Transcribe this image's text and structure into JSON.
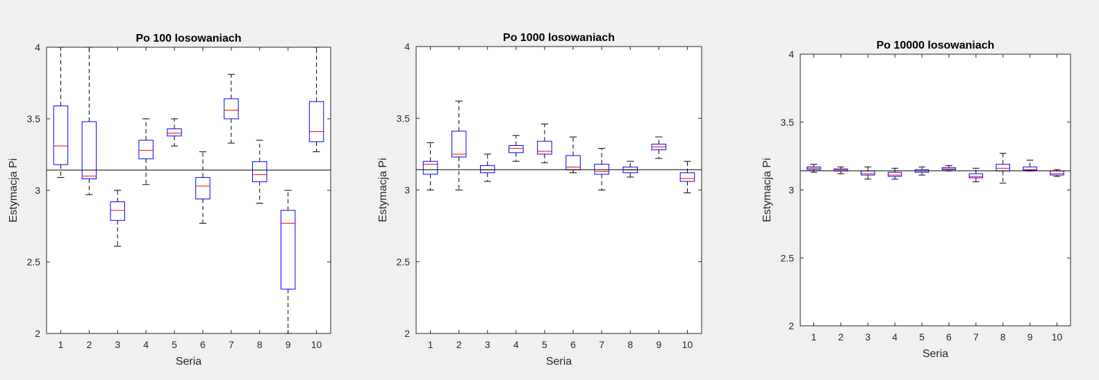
{
  "chart_data": [
    {
      "type": "box",
      "title": "Po 100 losowaniach",
      "xlabel": "Seria",
      "ylabel": "Estymacja Pi",
      "ylim": [
        2,
        4
      ],
      "yticks": [
        "2",
        "2.5",
        "3",
        "3.5",
        "4"
      ],
      "categories": [
        "1",
        "2",
        "3",
        "4",
        "5",
        "6",
        "7",
        "8",
        "9",
        "10"
      ],
      "reference_line": 3.14159,
      "boxes": [
        {
          "min": 3.09,
          "q1": 3.18,
          "median": 3.31,
          "q3": 3.59,
          "max": 4.0
        },
        {
          "min": 2.97,
          "q1": 3.08,
          "median": 3.1,
          "q3": 3.48,
          "max": 4.0
        },
        {
          "min": 2.61,
          "q1": 2.79,
          "median": 2.86,
          "q3": 2.92,
          "max": 3.0
        },
        {
          "min": 3.04,
          "q1": 3.22,
          "median": 3.28,
          "q3": 3.35,
          "max": 3.5
        },
        {
          "min": 3.31,
          "q1": 3.38,
          "median": 3.4,
          "q3": 3.43,
          "max": 3.5
        },
        {
          "min": 2.77,
          "q1": 2.94,
          "median": 3.03,
          "q3": 3.09,
          "max": 3.27
        },
        {
          "min": 3.33,
          "q1": 3.5,
          "median": 3.56,
          "q3": 3.64,
          "max": 3.81
        },
        {
          "min": 2.91,
          "q1": 3.06,
          "median": 3.11,
          "q3": 3.2,
          "max": 3.35
        },
        {
          "min": 2.0,
          "q1": 2.31,
          "median": 2.77,
          "q3": 2.86,
          "max": 3.0
        },
        {
          "min": 3.27,
          "q1": 3.34,
          "median": 3.41,
          "q3": 3.62,
          "max": 4.0
        }
      ]
    },
    {
      "type": "box",
      "title": "Po 1000 losowaniach",
      "xlabel": "Seria",
      "ylabel": "Estymacja Pi",
      "ylim": [
        2,
        4
      ],
      "yticks": [
        "2",
        "2.5",
        "3",
        "3.5",
        "4"
      ],
      "categories": [
        "1",
        "2",
        "3",
        "4",
        "5",
        "6",
        "7",
        "8",
        "9",
        "10"
      ],
      "reference_line": 3.14159,
      "boxes": [
        {
          "min": 3.0,
          "q1": 3.11,
          "median": 3.18,
          "q3": 3.2,
          "max": 3.33
        },
        {
          "min": 3.0,
          "q1": 3.23,
          "median": 3.25,
          "q3": 3.41,
          "max": 3.62
        },
        {
          "min": 3.06,
          "q1": 3.12,
          "median": 3.14,
          "q3": 3.17,
          "max": 3.25
        },
        {
          "min": 3.2,
          "q1": 3.26,
          "median": 3.29,
          "q3": 3.31,
          "max": 3.38
        },
        {
          "min": 3.19,
          "q1": 3.25,
          "median": 3.27,
          "q3": 3.34,
          "max": 3.46
        },
        {
          "min": 3.12,
          "q1": 3.14,
          "median": 3.16,
          "q3": 3.24,
          "max": 3.37
        },
        {
          "min": 3.0,
          "q1": 3.11,
          "median": 3.13,
          "q3": 3.18,
          "max": 3.29
        },
        {
          "min": 3.09,
          "q1": 3.12,
          "median": 3.14,
          "q3": 3.16,
          "max": 3.2
        },
        {
          "min": 3.22,
          "q1": 3.28,
          "median": 3.3,
          "q3": 3.32,
          "max": 3.37
        },
        {
          "min": 2.98,
          "q1": 3.06,
          "median": 3.08,
          "q3": 3.12,
          "max": 3.2
        }
      ]
    },
    {
      "type": "box",
      "title": "Po 10000 losowaniach",
      "xlabel": "Seria",
      "ylabel": "Estymacja Pi",
      "ylim": [
        2,
        4
      ],
      "yticks": [
        "2",
        "2.5",
        "3",
        "3.5",
        "4"
      ],
      "categories": [
        "1",
        "2",
        "3",
        "4",
        "5",
        "6",
        "7",
        "8",
        "9",
        "10"
      ],
      "reference_line": 3.14159,
      "boxes": [
        {
          "min": 3.13,
          "q1": 3.15,
          "median": 3.16,
          "q3": 3.17,
          "max": 3.19
        },
        {
          "min": 3.12,
          "q1": 3.14,
          "median": 3.15,
          "q3": 3.155,
          "max": 3.17
        },
        {
          "min": 3.08,
          "q1": 3.11,
          "median": 3.12,
          "q3": 3.14,
          "max": 3.17
        },
        {
          "min": 3.08,
          "q1": 3.1,
          "median": 3.11,
          "q3": 3.13,
          "max": 3.16
        },
        {
          "min": 3.11,
          "q1": 3.13,
          "median": 3.14,
          "q3": 3.15,
          "max": 3.17
        },
        {
          "min": 3.14,
          "q1": 3.15,
          "median": 3.155,
          "q3": 3.165,
          "max": 3.18
        },
        {
          "min": 3.06,
          "q1": 3.09,
          "median": 3.1,
          "q3": 3.12,
          "max": 3.16
        },
        {
          "min": 3.05,
          "q1": 3.14,
          "median": 3.16,
          "q3": 3.19,
          "max": 3.27
        },
        {
          "min": 3.14,
          "q1": 3.145,
          "median": 3.15,
          "q3": 3.17,
          "max": 3.22
        },
        {
          "min": 3.1,
          "q1": 3.11,
          "median": 3.12,
          "q3": 3.14,
          "max": 3.15
        }
      ]
    }
  ],
  "style": {
    "background": "#f0f0f0",
    "axes_background": "#ffffff",
    "box_color": "#0000ff",
    "median_color": "#ff0000",
    "whisker_color": "#000000",
    "reference_line_color": "#000000"
  }
}
